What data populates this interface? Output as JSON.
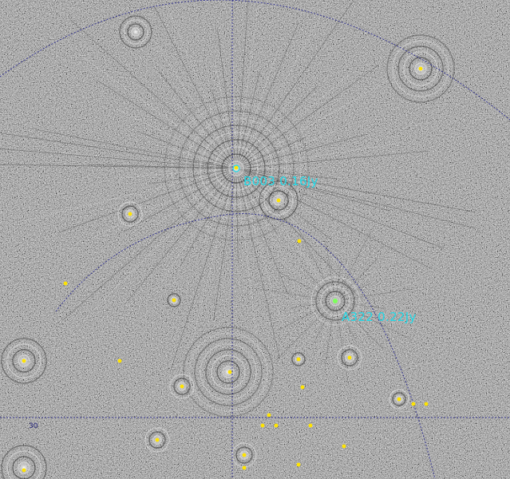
{
  "source_labels": {
    "label_1": "B003 0.16Jy",
    "label_2": "A322 0.22Jy"
  },
  "grid_labels": {
    "dec_label": "30"
  },
  "colors": {
    "label_color": "#22d8e6",
    "marker_color": "#ffe400",
    "grid_color": "#1f1f8a",
    "grid_label_color": "#22227a",
    "background": "#7d7d7d"
  }
}
